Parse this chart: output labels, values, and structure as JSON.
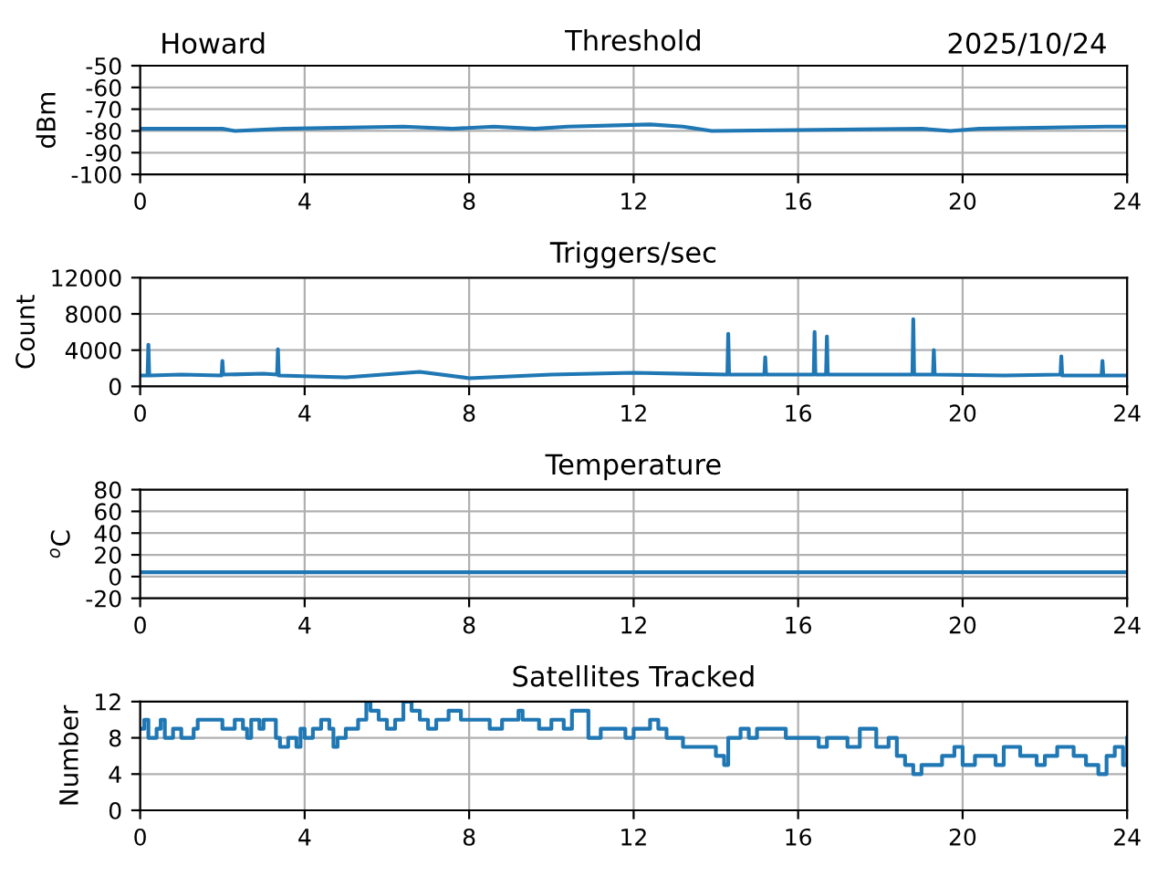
{
  "chart_data": [
    {
      "type": "line",
      "title": "Threshold",
      "ylabel": "dBm",
      "annotations": [
        "Howard",
        "2025/10/24"
      ],
      "xlim": [
        0,
        24
      ],
      "xticks": [
        0,
        4,
        8,
        12,
        16,
        20,
        24
      ],
      "ylim": [
        -100,
        -50
      ],
      "yticks": [
        -100,
        -90,
        -80,
        -70,
        -60,
        -50
      ],
      "grid": true,
      "series": [
        {
          "color": "#1f77b4",
          "x": [
            0,
            2,
            2.3,
            3.5,
            6.4,
            7.6,
            8.6,
            9.6,
            10.4,
            12.4,
            13.2,
            13.9,
            19,
            19.7,
            20.4,
            23.5,
            24
          ],
          "values": [
            -79,
            -79,
            -80,
            -79,
            -78,
            -79,
            -78,
            -79,
            -78,
            -77,
            -78,
            -80,
            -79,
            -80,
            -79,
            -78,
            -78
          ]
        }
      ]
    },
    {
      "type": "line",
      "title": "Triggers/sec",
      "ylabel": "Count",
      "xlim": [
        0,
        24
      ],
      "xticks": [
        0,
        4,
        8,
        12,
        16,
        20,
        24
      ],
      "ylim": [
        0,
        12000
      ],
      "yticks": [
        0,
        4000,
        8000,
        12000
      ],
      "grid": true,
      "series": [
        {
          "color": "#1f77b4",
          "x": [
            0,
            0.18,
            0.2,
            0.22,
            1.0,
            1.98,
            2.0,
            2.02,
            3.0,
            3.33,
            3.35,
            3.37,
            5.0,
            6.8,
            8.0,
            10.0,
            12.0,
            14.28,
            14.3,
            14.32,
            15.18,
            15.2,
            15.22,
            16.38,
            16.4,
            16.42,
            16.68,
            16.7,
            16.72,
            18.78,
            18.8,
            18.82,
            19.28,
            19.3,
            19.32,
            21.0,
            22.38,
            22.4,
            22.42,
            23.38,
            23.4,
            23.42,
            24
          ],
          "values": [
            1200,
            1200,
            4600,
            1200,
            1300,
            1200,
            2800,
            1300,
            1400,
            1300,
            4100,
            1200,
            1000,
            1600,
            900,
            1300,
            1500,
            1300,
            5800,
            1300,
            1300,
            3200,
            1300,
            1300,
            6000,
            1300,
            1300,
            5500,
            1300,
            1300,
            7400,
            1300,
            1300,
            4000,
            1300,
            1200,
            1300,
            3300,
            1200,
            1200,
            2800,
            1200,
            1200
          ]
        }
      ]
    },
    {
      "type": "line",
      "title": "Temperature",
      "ylabel": "$^{o}$C",
      "xlim": [
        0,
        24
      ],
      "xticks": [
        0,
        4,
        8,
        12,
        16,
        20,
        24
      ],
      "ylim": [
        -20,
        80
      ],
      "yticks": [
        -20,
        0,
        20,
        40,
        60,
        80
      ],
      "grid": true,
      "series": [
        {
          "color": "#1f77b4",
          "x": [
            0,
            24
          ],
          "values": [
            4,
            4
          ]
        }
      ]
    },
    {
      "type": "step",
      "title": "Satellites Tracked",
      "ylabel": "Number",
      "xlim": [
        0,
        24
      ],
      "xticks": [
        0,
        4,
        8,
        12,
        16,
        20,
        24
      ],
      "ylim": [
        0,
        12
      ],
      "yticks": [
        0,
        4,
        8,
        12
      ],
      "grid": true,
      "series": [
        {
          "color": "#1f77b4",
          "x": [
            0,
            0.1,
            0.2,
            0.4,
            0.5,
            0.6,
            0.8,
            1.0,
            1.3,
            1.4,
            2.0,
            2.3,
            2.5,
            2.6,
            2.7,
            2.9,
            3.0,
            3.3,
            3.4,
            3.6,
            3.8,
            3.9,
            4.0,
            4.2,
            4.4,
            4.6,
            4.7,
            4.8,
            5.0,
            5.3,
            5.5,
            5.6,
            5.8,
            6.0,
            6.2,
            6.4,
            6.6,
            6.8,
            7.0,
            7.2,
            7.5,
            7.8,
            8.5,
            8.8,
            9.2,
            9.3,
            9.7,
            10.0,
            10.3,
            10.5,
            10.9,
            11.2,
            11.8,
            12.0,
            12.4,
            12.6,
            12.8,
            13.2,
            14.0,
            14.2,
            14.3,
            14.6,
            14.8,
            15.0,
            15.7,
            16.5,
            16.7,
            17.2,
            17.5,
            17.9,
            18.2,
            18.4,
            18.6,
            18.8,
            19.0,
            19.5,
            19.8,
            20.0,
            20.3,
            20.8,
            21.0,
            21.4,
            21.8,
            22.0,
            22.3,
            22.7,
            23.0,
            23.3,
            23.5,
            23.7,
            23.9,
            24
          ],
          "values": [
            9,
            10,
            8,
            9,
            10,
            8,
            9,
            8,
            9,
            10,
            9,
            10,
            9,
            8,
            10,
            9,
            10,
            8,
            7,
            8,
            7,
            9,
            8,
            9,
            10,
            9,
            7,
            8,
            9,
            10,
            12,
            11,
            10,
            9,
            10,
            12,
            11,
            10,
            9,
            10,
            11,
            10,
            9,
            10,
            11,
            10,
            9,
            10,
            9,
            11,
            8,
            9,
            8,
            9,
            10,
            9,
            8,
            7,
            6,
            5,
            8,
            9,
            8,
            9,
            8,
            7,
            8,
            7,
            9,
            7,
            8,
            6,
            5,
            4,
            5,
            6,
            7,
            5,
            6,
            5,
            7,
            6,
            5,
            6,
            7,
            6,
            5,
            4,
            6,
            7,
            5,
            8
          ]
        }
      ]
    }
  ]
}
